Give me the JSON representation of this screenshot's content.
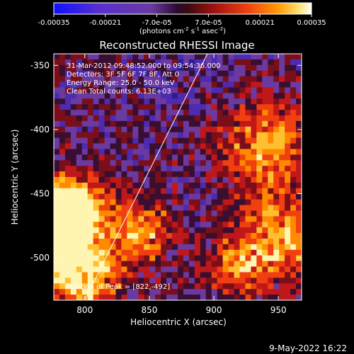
{
  "colors": {
    "background": "#000000",
    "foreground": "#ffffff",
    "colormap": [
      "#1010ff",
      "#5a2fcf",
      "#6a3aa0",
      "#8a1f60",
      "#c0181a",
      "#f04010",
      "#ff8a00",
      "#ffc840",
      "#ffffff"
    ]
  },
  "colorbar": {
    "min": -0.00035,
    "max": 0.00035,
    "tick_labels": [
      "-0.00035",
      "-0.00021",
      "-7.0e-05",
      "7.0e-05",
      "0.00021",
      "0.00035"
    ],
    "units_label": "(photons cm",
    "units_exp1": "-2",
    "units_mid": " s",
    "units_exp2": "-1",
    "units_mid2": " asec",
    "units_exp3": "-2",
    "units_close": ")"
  },
  "chart_data": {
    "type": "heatmap",
    "title": "Reconstructed RHESSI Image",
    "xlabel": "Heliocentric X (arcsec)",
    "ylabel": "Heliocentric Y (arcsec)",
    "xlim": [
      776,
      968
    ],
    "ylim": [
      -533,
      -341
    ],
    "x_ticks": [
      800,
      850,
      900,
      950
    ],
    "y_ticks": [
      -350,
      -400,
      -450,
      -500
    ],
    "annotations": [
      "31-Mar-2012 09:48:52.000 to 09:54:36.000",
      "Detectors: 3F 5F 6F 7F 8F, Att 0",
      "Energy Range: 25.0 - 50.0 keV",
      "Clean    Total counts: 6.13E+03"
    ],
    "peak_label": "Position of Peak = [822,-492]",
    "peak": [
      822,
      -492
    ],
    "limb_line": [
      [
        800,
        -533
      ],
      [
        895,
        -341
      ]
    ],
    "value_grid_note": "flux values in photons cm-2 s-1 asec-2; brightest region near the peak, emission mostly lower-left"
  },
  "footer": {
    "date": "9-May-2022 16:22"
  }
}
